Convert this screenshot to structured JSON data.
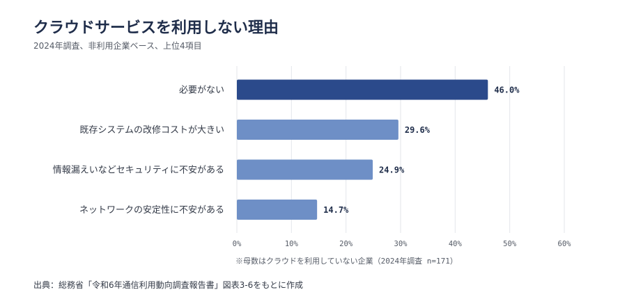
{
  "title": "クラウドサービスを利用しない理由",
  "subtitle": "2024年調査、非利用企業ベース、上位4項目",
  "note": "※母数はクラウドを利用していない企業（2024年調査 n=171）",
  "source": "出典：総務省「令和6年通信利用動向調査報告書」図表3-6をもとに作成",
  "colors": {
    "highlight": "#2b4a8b",
    "bar": "#6e8fc6",
    "grid": "#e3e6ea"
  },
  "chart_data": {
    "type": "bar",
    "orientation": "horizontal",
    "categories": [
      "必要がない",
      "既存システムの改修コストが大きい",
      "情報漏えいなどセキュリティに不安がある",
      "ネットワークの安定性に不安がある"
    ],
    "values": [
      46.0,
      29.6,
      24.9,
      14.7
    ],
    "value_labels": [
      "46.0%",
      "29.6%",
      "24.9%",
      "14.7%"
    ],
    "xlim": [
      0,
      60
    ],
    "xticks": [
      0,
      10,
      20,
      30,
      40,
      50,
      60
    ],
    "xtick_labels": [
      "0%",
      "10%",
      "20%",
      "30%",
      "40%",
      "50%",
      "60%"
    ],
    "grid": true,
    "highlight_index": 0
  }
}
